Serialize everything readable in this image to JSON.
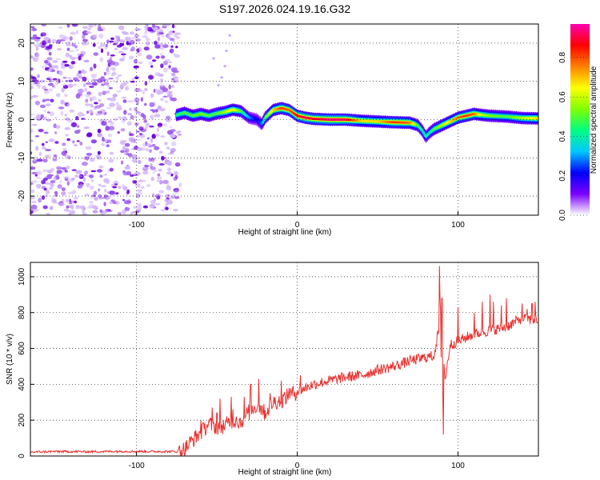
{
  "chart_data": [
    {
      "type": "heatmap",
      "title": "S197.2026.024.19.16.G32",
      "xlabel": "Height of straight line (km)",
      "ylabel": "Frequency (Hz)",
      "xlim": [
        -166,
        150
      ],
      "ylim": [
        -25,
        25
      ],
      "xticks": [
        -100,
        0,
        100
      ],
      "yticks": [
        -20,
        -10,
        0,
        10,
        20
      ],
      "colorbar": {
        "label": "Normalized spectral amplitude",
        "range": [
          0,
          0.97
        ],
        "ticks": [
          0.0,
          0.2,
          0.4,
          0.6,
          0.8
        ],
        "colormap": [
          "#ffffff",
          "#7a00ff",
          "#0000ff",
          "#00c8ff",
          "#00ff80",
          "#80ff00",
          "#ffff00",
          "#ff8000",
          "#ff0000",
          "#ff00b0"
        ]
      },
      "noise_region_x": [
        -166,
        -74
      ],
      "ridge": {
        "x": [
          -75,
          -70,
          -65,
          -60,
          -55,
          -50,
          -45,
          -40,
          -35,
          -30,
          -25,
          -22,
          -20,
          -15,
          -10,
          -5,
          0,
          5,
          10,
          20,
          30,
          40,
          50,
          60,
          70,
          75,
          78,
          80,
          82,
          85,
          90,
          95,
          100,
          105,
          110,
          115,
          120,
          130,
          140,
          150
        ],
        "freq": [
          1.2,
          1.8,
          1.0,
          1.5,
          1.0,
          1.6,
          2.0,
          2.6,
          2.2,
          0.5,
          0.0,
          -1.2,
          0.5,
          2.5,
          3.0,
          2.5,
          1.0,
          0.5,
          0.2,
          0.0,
          0.0,
          -0.3,
          -0.5,
          -0.7,
          -0.8,
          -1.5,
          -3.0,
          -4.5,
          -3.5,
          -2.5,
          -1.5,
          -0.5,
          0.5,
          1.0,
          1.5,
          1.2,
          1.0,
          0.8,
          0.4,
          0.3
        ],
        "amp": [
          0.45,
          0.5,
          0.5,
          0.55,
          0.5,
          0.5,
          0.6,
          0.7,
          0.5,
          0.3,
          0.2,
          0.3,
          0.5,
          0.7,
          0.85,
          0.8,
          0.9,
          0.95,
          0.9,
          0.97,
          0.95,
          0.7,
          0.7,
          0.85,
          0.8,
          0.5,
          0.4,
          0.4,
          0.4,
          0.5,
          0.6,
          0.7,
          0.8,
          0.85,
          0.8,
          0.6,
          0.55,
          0.5,
          0.6,
          0.7
        ]
      }
    },
    {
      "type": "line",
      "xlabel": "Height of straight line (km)",
      "ylabel": "SNR (10 * v/v)",
      "xlim": [
        -166,
        150
      ],
      "ylim": [
        0,
        1080
      ],
      "xticks": [
        -100,
        0,
        100
      ],
      "yticks": [
        0,
        200,
        400,
        600,
        800,
        1000
      ],
      "series": [
        {
          "name": "SNR",
          "color": "#e8302e",
          "x": [
            -166,
            -150,
            -130,
            -110,
            -90,
            -75,
            -70,
            -65,
            -60,
            -55,
            -50,
            -45,
            -40,
            -35,
            -30,
            -25,
            -20,
            -15,
            -10,
            -5,
            0,
            10,
            20,
            30,
            40,
            50,
            60,
            70,
            80,
            85,
            88,
            89,
            90,
            91,
            92,
            95,
            100,
            110,
            120,
            130,
            140,
            145,
            150
          ],
          "y": [
            22,
            25,
            24,
            26,
            25,
            25,
            40,
            90,
            130,
            180,
            160,
            170,
            200,
            190,
            250,
            280,
            240,
            300,
            310,
            340,
            360,
            400,
            420,
            440,
            450,
            480,
            500,
            530,
            550,
            560,
            700,
            900,
            150,
            560,
            420,
            620,
            640,
            680,
            700,
            720,
            770,
            760,
            760
          ]
        }
      ],
      "spikes": {
        "x": [
          -60,
          -58,
          -53,
          -50,
          -48,
          -46,
          -41,
          -40,
          -38,
          -33,
          -30,
          -29,
          -24,
          -22,
          -17,
          -10,
          -5,
          2,
          88.5,
          90,
          90.8,
          100,
          103,
          110,
          115,
          120,
          122,
          127,
          130,
          140,
          143,
          146,
          148
        ],
        "y": [
          200,
          150,
          270,
          240,
          320,
          200,
          330,
          260,
          220,
          330,
          200,
          400,
          430,
          280,
          350,
          420,
          380,
          450,
          1060,
          880,
          120,
          830,
          650,
          800,
          860,
          900,
          860,
          840,
          880,
          850,
          820,
          850,
          860
        ]
      }
    }
  ]
}
